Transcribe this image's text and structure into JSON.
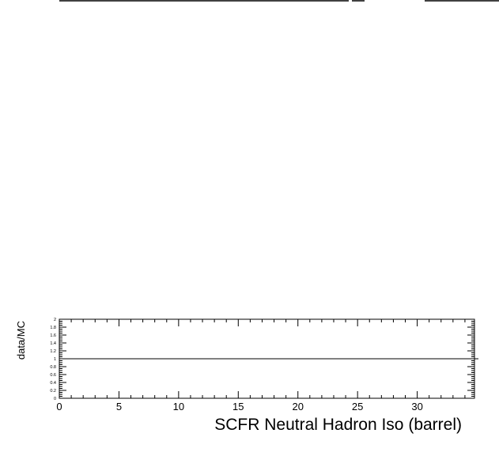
{
  "chart_data": {
    "type": "line",
    "xlabel": "SCFR Neutral Hadron Iso (barrel)",
    "ylabel": "data/MC",
    "xlim": [
      0,
      34.8
    ],
    "ylim": [
      0,
      2
    ],
    "x_ticks": [
      0,
      5,
      10,
      15,
      20,
      25,
      30
    ],
    "x_tick_labels": [
      "0",
      "5",
      "10",
      "15",
      "20",
      "25",
      "30"
    ],
    "y_ticks": [
      0,
      0.2,
      0.4,
      0.6,
      0.8,
      1,
      1.2,
      1.4,
      1.6,
      1.8,
      2
    ],
    "y_tick_labels": [
      "0",
      "0.2",
      "0.4",
      "0.6",
      "0.8",
      "1",
      "1.2",
      "1.4",
      "1.6",
      "1.8",
      "2"
    ],
    "reference_line": {
      "y": 1
    },
    "series": [],
    "grid": false
  }
}
